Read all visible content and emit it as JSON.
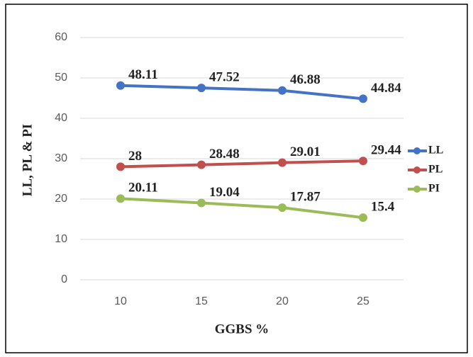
{
  "chart_data": {
    "type": "line",
    "x_label": "GGBS %",
    "y_label": "LL, PL & PI",
    "categories": [
      "10",
      "15",
      "20",
      "25"
    ],
    "series": [
      {
        "name": "LL",
        "color": "#4472c4",
        "values": [
          48.11,
          47.52,
          46.88,
          44.84
        ]
      },
      {
        "name": "PL",
        "color": "#c0504d",
        "values": [
          28,
          28.48,
          29.01,
          29.44
        ]
      },
      {
        "name": "PI",
        "color": "#9bbb59",
        "values": [
          20.11,
          19.04,
          17.87,
          15.4
        ]
      }
    ],
    "ylim": [
      0,
      60
    ],
    "yticks": [
      0,
      10,
      20,
      30,
      40,
      50,
      60
    ],
    "grid": true,
    "legend": "right"
  }
}
